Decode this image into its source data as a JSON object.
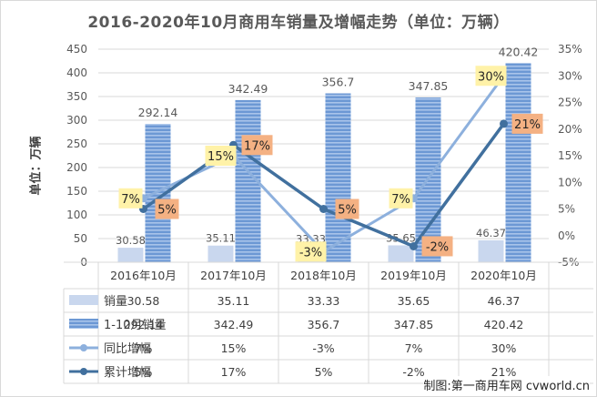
{
  "title": "2016-2020年10月商用车销量及增幅走势（单位：万辆）",
  "ylabel": "单位：万辆",
  "credit": "制图:第一商用车网 cvworld.cn",
  "colors": {
    "monthly_bar": "#c9d7ee",
    "cumulative_bar": "#6c98d4",
    "cumulative_bar_stripe": "#a9c4ea",
    "yoy_line": "#8db0dd",
    "cum_growth_line": "#41709e",
    "yoy_label_bg": "#fff2a8",
    "cum_label_bg": "#f4b183",
    "grid": "#d9d9d9",
    "axis_text": "#595959"
  },
  "chart_data": {
    "type": "bar",
    "categories": [
      "2016年10月",
      "2017年10月",
      "2018年10月",
      "2019年10月",
      "2020年10月"
    ],
    "y_left": {
      "min": 0,
      "max": 450,
      "step": 50,
      "ticks": [
        "0",
        "50",
        "100",
        "150",
        "200",
        "250",
        "300",
        "350",
        "400",
        "450"
      ]
    },
    "y_right": {
      "min": -5,
      "max": 35,
      "step": 5,
      "ticks": [
        "-5%",
        "0%",
        "5%",
        "10%",
        "15%",
        "20%",
        "25%",
        "30%",
        "35%"
      ]
    },
    "series": [
      {
        "name": "销量",
        "kind": "bar",
        "axis": "left",
        "values": [
          30.58,
          35.11,
          33.33,
          35.65,
          46.37
        ],
        "labels": [
          "30.58",
          "35.11",
          "33.33",
          "35.65",
          "46.37"
        ]
      },
      {
        "name": "1-10月销量",
        "kind": "bar",
        "axis": "left",
        "values": [
          292.14,
          342.49,
          356.7,
          347.85,
          420.42
        ],
        "labels": [
          "292.14",
          "342.49",
          "356.7",
          "347.85",
          "420.42"
        ]
      },
      {
        "name": "同比增幅",
        "kind": "line",
        "axis": "right",
        "values": [
          7,
          15,
          -3,
          7,
          30
        ],
        "labels": [
          "7%",
          "15%",
          "-3%",
          "7%",
          "30%"
        ]
      },
      {
        "name": "累计增幅",
        "kind": "line",
        "axis": "right",
        "values": [
          5,
          17,
          5,
          -2,
          21
        ],
        "labels": [
          "5%",
          "17%",
          "5%",
          "-2%",
          "21%"
        ]
      }
    ],
    "grid": true,
    "legend": "bottom data table"
  }
}
